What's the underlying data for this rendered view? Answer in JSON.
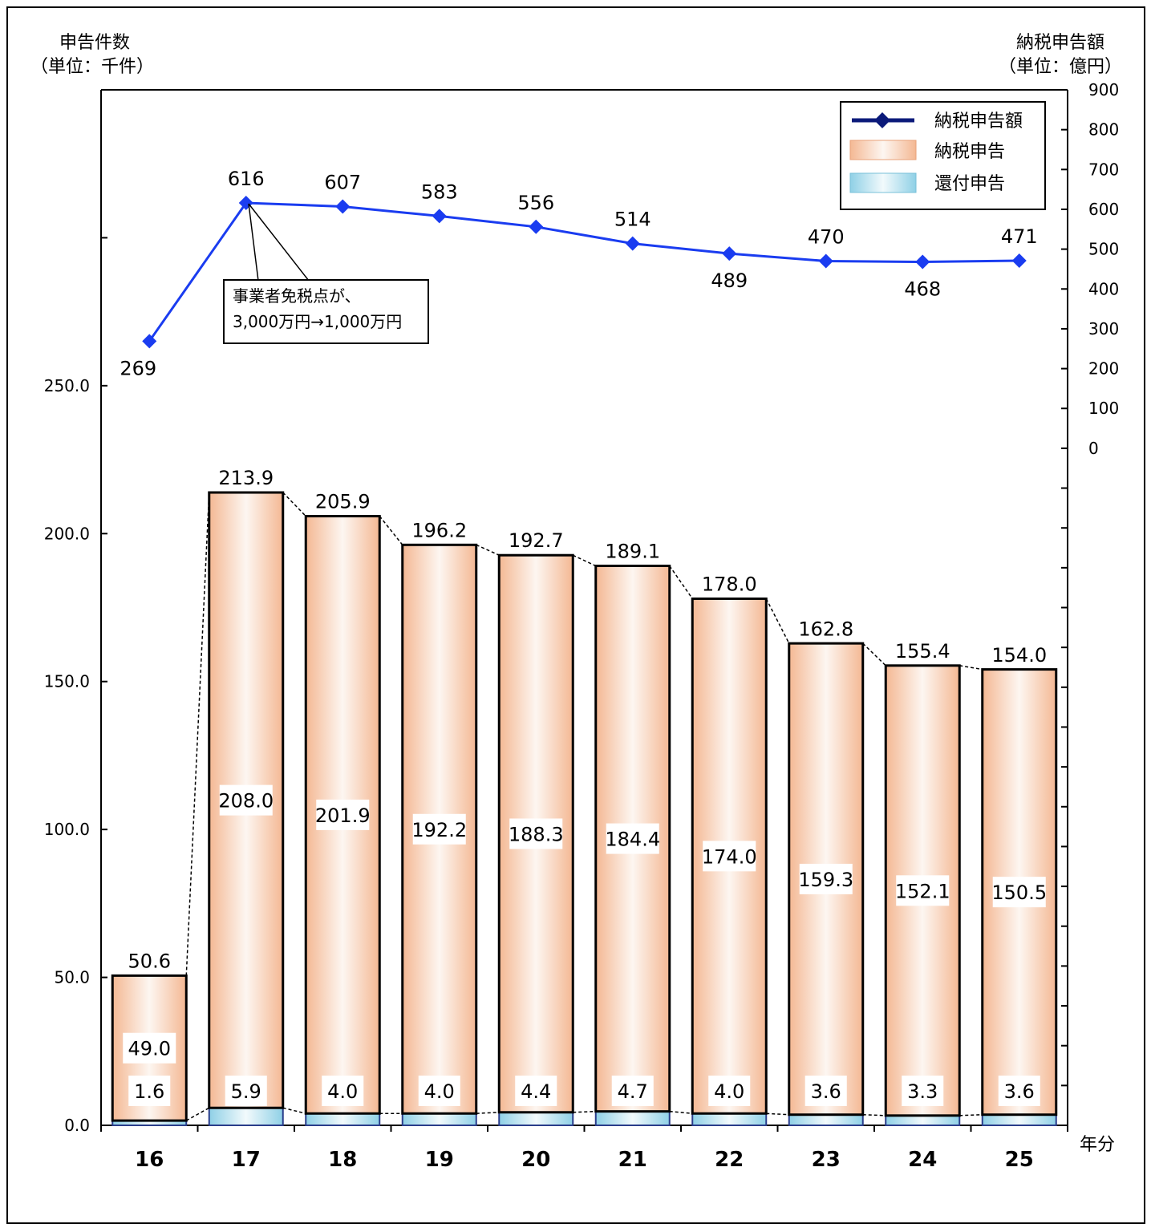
{
  "chart_data": {
    "type": "bar",
    "categories": [
      "16",
      "17",
      "18",
      "19",
      "20",
      "21",
      "22",
      "23",
      "24",
      "25"
    ],
    "xlabel": "年分",
    "left_axis": {
      "title": "申告件数",
      "unit": "（単位：千件）",
      "ylim": [
        0,
        350
      ],
      "ticks": [
        "0.0",
        "50.0",
        "100.0",
        "150.0",
        "200.0",
        "250.0"
      ]
    },
    "right_axis": {
      "title": "納税申告額",
      "unit": "（単位：億円）",
      "ylim": [
        -1700,
        900
      ],
      "ticks": [
        "0",
        "100",
        "200",
        "300",
        "400",
        "500",
        "600",
        "700",
        "800",
        "900"
      ]
    },
    "series": [
      {
        "name": "還付申告",
        "type": "bar",
        "axis": "left",
        "values": [
          1.6,
          5.9,
          4.0,
          4.0,
          4.4,
          4.7,
          4.0,
          3.6,
          3.3,
          3.6
        ],
        "labels": [
          "1.6",
          "5.9",
          "4.0",
          "4.0",
          "4.4",
          "4.7",
          "4.0",
          "3.6",
          "3.3",
          "3.6"
        ]
      },
      {
        "name": "納税申告",
        "type": "bar",
        "axis": "left",
        "values": [
          49.0,
          208.0,
          201.9,
          192.2,
          188.3,
          184.4,
          174.0,
          159.3,
          152.1,
          150.5
        ],
        "labels": [
          "49.0",
          "208.0",
          "201.9",
          "192.2",
          "188.3",
          "184.4",
          "174.0",
          "159.3",
          "152.1",
          "150.5"
        ]
      },
      {
        "name": "納税申告額",
        "type": "line",
        "axis": "right",
        "values": [
          269,
          616,
          607,
          583,
          556,
          514,
          489,
          470,
          468,
          471
        ],
        "labels": [
          "269",
          "616",
          "607",
          "583",
          "556",
          "514",
          "489",
          "470",
          "468",
          "471"
        ]
      }
    ],
    "totals": [
      50.6,
      213.9,
      205.9,
      196.2,
      192.7,
      189.1,
      178.0,
      162.8,
      155.4,
      154.0
    ],
    "total_labels": [
      "50.6",
      "213.9",
      "205.9",
      "196.2",
      "192.7",
      "189.1",
      "178.0",
      "162.8",
      "155.4",
      "154.0"
    ],
    "annotation": {
      "line1": "事業者免税点が、",
      "line2": "3,000万円→1,000万円"
    },
    "legend": {
      "position": "top-right",
      "items": [
        "納税申告額",
        "納税申告",
        "還付申告"
      ]
    },
    "colors": {
      "line": "#1a3cf0",
      "bar_edge": "#e8a27a",
      "refund_edge": "#79c0d8",
      "legend_line": "#0b1a7a"
    }
  }
}
